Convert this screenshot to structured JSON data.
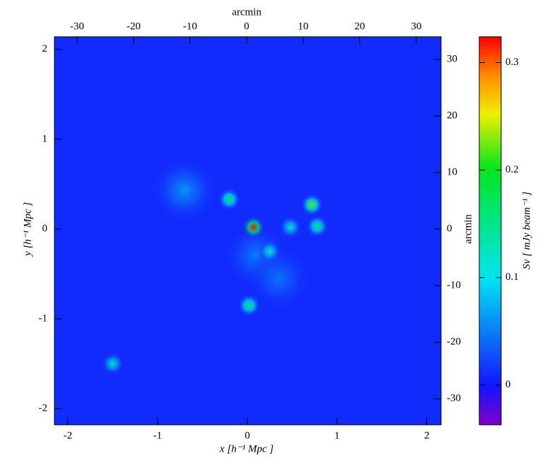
{
  "chart_data": {
    "type": "image",
    "xlabel": "x [h⁻¹ Mpc ]",
    "ylabel": "y [h⁻¹ Mpc ]",
    "x2label": "arcmin",
    "y2label": "arcmin",
    "xlim": [
      -2.15,
      2.16
    ],
    "xticks": [
      -2,
      -1,
      0,
      1,
      2
    ],
    "ylim": [
      -2.18,
      2.14
    ],
    "yticks": [
      -2,
      -1,
      0,
      1,
      2
    ],
    "x2lim": [
      -34,
      34.4
    ],
    "x2ticks": [
      -30,
      -20,
      -10,
      0,
      10,
      20,
      30
    ],
    "y2lim": [
      -34.6,
      34
    ],
    "y2ticks": [
      -30,
      -20,
      -10,
      0,
      10,
      20,
      30
    ],
    "colorbar": {
      "label": "Sν [ mJy beam⁻¹ ]",
      "lim": [
        -0.037,
        0.324
      ],
      "ticks": [
        0,
        0.1,
        0.2,
        0.3
      ]
    },
    "background": 0.01,
    "sources": [
      {
        "x": -0.7,
        "y": 0.43,
        "peak": 0.06
      },
      {
        "x": 0.1,
        "y": -0.3,
        "peak": 0.05
      },
      {
        "x": 0.35,
        "y": -0.55,
        "peak": 0.045
      },
      {
        "x": 0.07,
        "y": 0.02,
        "peak": 0.32
      },
      {
        "x": -0.2,
        "y": 0.33,
        "peak": 0.17
      },
      {
        "x": 0.72,
        "y": 0.27,
        "peak": 0.22
      },
      {
        "x": 0.78,
        "y": 0.03,
        "peak": 0.16
      },
      {
        "x": 0.25,
        "y": -0.25,
        "peak": 0.12
      },
      {
        "x": 0.48,
        "y": 0.02,
        "peak": 0.12
      },
      {
        "x": 0.02,
        "y": -0.85,
        "peak": 0.17
      },
      {
        "x": -1.5,
        "y": -1.5,
        "peak": 0.12
      }
    ]
  }
}
